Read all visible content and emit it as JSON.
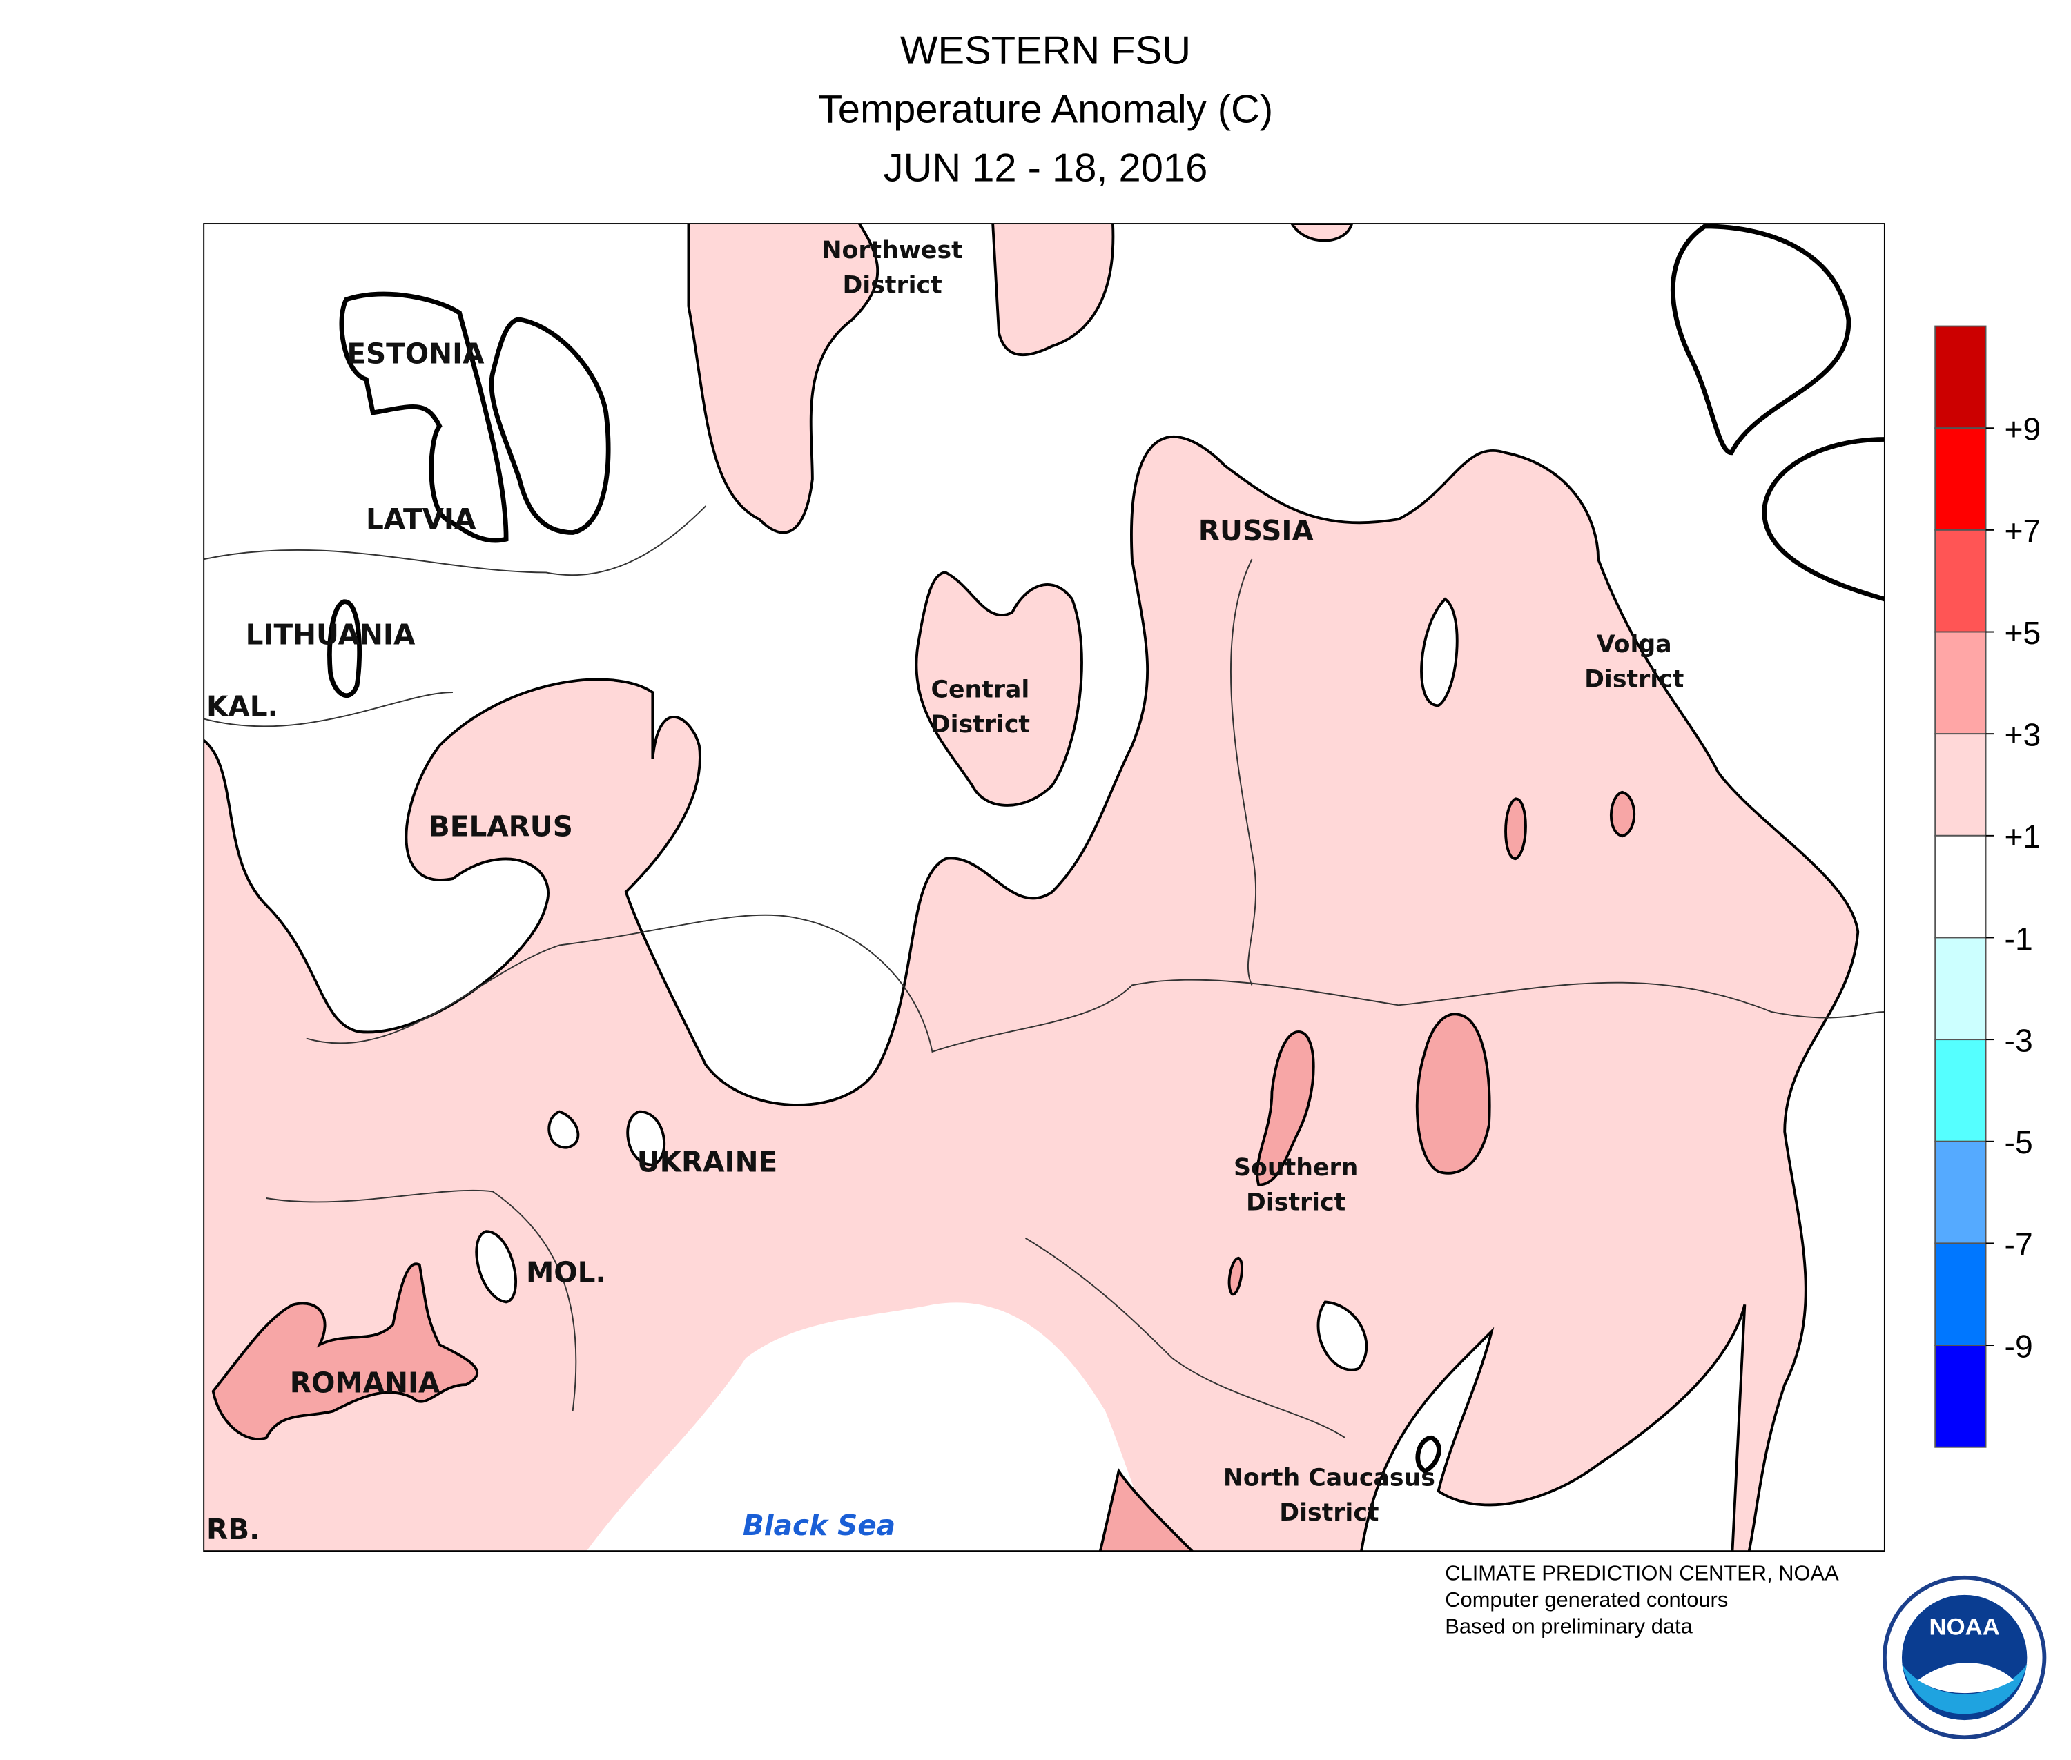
{
  "header": {
    "title": "WESTERN FSU",
    "subtitle": "Temperature Anomaly (C)",
    "date": "JUN 12 - 18, 2016"
  },
  "map": {
    "labels": [
      "Northwest District",
      "ESTONIA",
      "LATVIA",
      "LITHUANIA",
      "KAL.",
      "BELARUS",
      "RUSSIA",
      "Central District",
      "Volga District",
      "UKRAINE",
      "Southern District",
      "MOL.",
      "ROMANIA",
      "North Caucasus District",
      "Black Sea",
      "RB."
    ]
  },
  "legend": {
    "colors": [
      "#cc0000",
      "#ff0000",
      "#ff5555",
      "#ffa6a6",
      "#ffd8d8",
      "#ffffff",
      "#ccffff",
      "#55ffff",
      "#55aaff",
      "#0077ff",
      "#0000ff"
    ],
    "ticks": [
      {
        "value": 9,
        "label": "+9"
      },
      {
        "value": 7,
        "label": "+7"
      },
      {
        "value": 5,
        "label": "+5"
      },
      {
        "value": 3,
        "label": "+3"
      },
      {
        "value": 1,
        "label": "+1"
      },
      -1,
      -3,
      -5,
      -7,
      -9
    ]
  },
  "footer": {
    "lines": [
      "CLIMATE PREDICTION CENTER, NOAA",
      "Computer generated contours",
      "Based on preliminary data"
    ],
    "logo": "NOAA"
  }
}
